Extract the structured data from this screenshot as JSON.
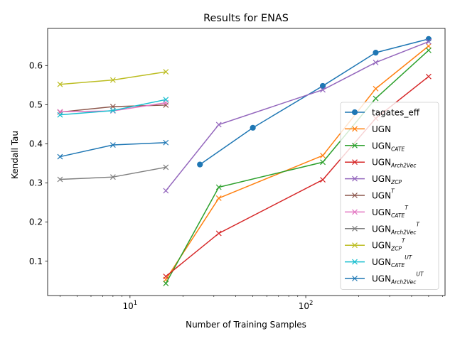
{
  "chart_data": {
    "type": "line",
    "title": "Results for ENAS",
    "xlabel": "Number of Training Samples",
    "ylabel": "Kendall Tau",
    "xscale": "log",
    "xlim": [
      3.4,
      620
    ],
    "ylim": [
      0.012,
      0.695
    ],
    "x_major_ticks": [
      {
        "value": 10,
        "base": "10",
        "exp": "1"
      },
      {
        "value": 100,
        "base": "10",
        "exp": "2"
      }
    ],
    "x_minor_ticks": [
      4,
      5,
      6,
      7,
      8,
      9,
      20,
      30,
      40,
      50,
      60,
      70,
      80,
      90,
      200,
      300,
      400,
      500,
      600
    ],
    "y_ticks": [
      0.1,
      0.2,
      0.3,
      0.4,
      0.5,
      0.6
    ],
    "y_tick_labels": [
      "0.1",
      "0.2",
      "0.3",
      "0.4",
      "0.5",
      "0.6"
    ],
    "grid": false,
    "legend_position": "lower-right",
    "series": [
      {
        "name": "tagates_eff",
        "base": "tagates_eff",
        "sub": "",
        "sup": "",
        "color": "#1f77b4",
        "marker": "o",
        "x": [
          25,
          50,
          125,
          250,
          500
        ],
        "y": [
          0.347,
          0.441,
          0.548,
          0.633,
          0.668
        ]
      },
      {
        "name": "UGN",
        "base": "UGN",
        "sub": "",
        "sup": "",
        "color": "#ff7f0e",
        "marker": "x",
        "x": [
          16,
          32,
          125,
          250,
          500
        ],
        "y": [
          0.053,
          0.261,
          0.37,
          0.541,
          0.65
        ]
      },
      {
        "name": "UGN_CATE",
        "base": "UGN",
        "sub": "CATE",
        "sup": "",
        "color": "#2ca02c",
        "marker": "x",
        "x": [
          16,
          32,
          125,
          250,
          500
        ],
        "y": [
          0.043,
          0.289,
          0.353,
          0.516,
          0.639
        ]
      },
      {
        "name": "UGN_Arch2Vec",
        "base": "UGN",
        "sub": "Arch2Vec",
        "sup": "",
        "color": "#d62728",
        "marker": "x",
        "x": [
          16,
          32,
          125,
          250,
          500
        ],
        "y": [
          0.061,
          0.171,
          0.308,
          0.465,
          0.572
        ]
      },
      {
        "name": "UGN_ZCP",
        "base": "UGN",
        "sub": "ZCP",
        "sup": "",
        "color": "#9467bd",
        "marker": "x",
        "x": [
          16,
          32,
          125,
          250,
          500
        ],
        "y": [
          0.28,
          0.449,
          0.538,
          0.608,
          0.661
        ]
      },
      {
        "name": "UGN^T",
        "base": "UGN",
        "sub": "",
        "sup": "T",
        "color": "#8c564b",
        "marker": "x",
        "x": [
          4,
          8,
          16
        ],
        "y": [
          0.481,
          0.495,
          0.499
        ]
      },
      {
        "name": "UGN_CATE^T",
        "base": "UGN",
        "sub": "CATE",
        "sup": "T",
        "color": "#e377c2",
        "marker": "x",
        "x": [
          4,
          8,
          16
        ],
        "y": [
          0.482,
          0.484,
          0.505
        ]
      },
      {
        "name": "UGN_Arch2Vec^T",
        "base": "UGN",
        "sub": "Arch2Vec",
        "sup": "T",
        "color": "#7f7f7f",
        "marker": "x",
        "x": [
          4,
          8,
          16
        ],
        "y": [
          0.309,
          0.315,
          0.34
        ]
      },
      {
        "name": "UGN_ZCP^T",
        "base": "UGN",
        "sub": "ZCP",
        "sup": "T",
        "color": "#bcbd22",
        "marker": "x",
        "x": [
          4,
          8,
          16
        ],
        "y": [
          0.552,
          0.563,
          0.584
        ]
      },
      {
        "name": "UGN_CATE^UT",
        "base": "UGN",
        "sub": "CATE",
        "sup": "UT",
        "color": "#17becf",
        "marker": "x",
        "x": [
          4,
          8,
          16
        ],
        "y": [
          0.474,
          0.485,
          0.513
        ]
      },
      {
        "name": "UGN_Arch2Vec^UT",
        "base": "UGN",
        "sub": "Arch2Vec",
        "sup": "UT",
        "color": "#1f77b4",
        "marker": "x",
        "x": [
          4,
          8,
          16
        ],
        "y": [
          0.367,
          0.397,
          0.403
        ]
      }
    ]
  }
}
